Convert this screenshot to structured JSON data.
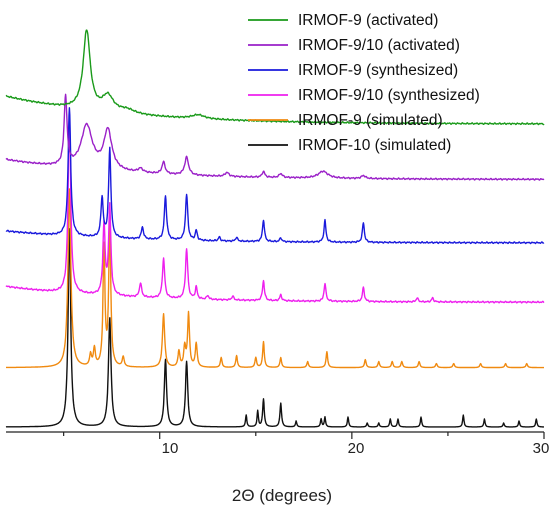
{
  "chart_data": {
    "type": "line",
    "title": "",
    "xlabel": "2Θ (degrees)",
    "ylabel": "",
    "xlim": [
      2,
      30
    ],
    "x_ticks": [
      10,
      20,
      30
    ],
    "x_tick_labels": [
      "10",
      "20",
      "30"
    ],
    "grid": false,
    "legend_position": "top-right",
    "legend": [
      {
        "label": "IRMOF-9 (activated)",
        "color": "#1a9a1a"
      },
      {
        "label": "IRMOF-9/10 (activated)",
        "color": "#9a20c8"
      },
      {
        "label": "IRMOF-9 (synthesized)",
        "color": "#1a1adc"
      },
      {
        "label": "IRMOF-9/10 (synthesized)",
        "color": "#ee20ee"
      },
      {
        "label": "IRMOF-9 (simulated)",
        "color": "#f08a10"
      },
      {
        "label": "IRMOF-10 (simulated)",
        "color": "#111111"
      }
    ],
    "series": [
      {
        "name": "IRMOF-10 (simulated)",
        "color": "#111111",
        "offset": 0,
        "baseline": 0,
        "decay": 0,
        "peaks": [
          [
            5.3,
            1.0,
            0.08
          ],
          [
            7.4,
            0.55,
            0.08
          ],
          [
            10.3,
            0.34,
            0.07
          ],
          [
            11.4,
            0.33,
            0.07
          ],
          [
            14.5,
            0.06,
            0.04
          ],
          [
            15.1,
            0.08,
            0.04
          ],
          [
            15.4,
            0.14,
            0.05
          ],
          [
            16.3,
            0.12,
            0.05
          ],
          [
            17.1,
            0.03,
            0.04
          ],
          [
            18.4,
            0.04,
            0.04
          ],
          [
            18.6,
            0.05,
            0.04
          ],
          [
            19.8,
            0.05,
            0.04
          ],
          [
            20.8,
            0.02,
            0.04
          ],
          [
            21.4,
            0.02,
            0.04
          ],
          [
            22.0,
            0.04,
            0.04
          ],
          [
            22.4,
            0.04,
            0.04
          ],
          [
            23.6,
            0.05,
            0.04
          ],
          [
            25.8,
            0.06,
            0.04
          ],
          [
            26.9,
            0.04,
            0.04
          ],
          [
            27.9,
            0.02,
            0.04
          ],
          [
            28.7,
            0.03,
            0.04
          ],
          [
            29.6,
            0.04,
            0.04
          ]
        ]
      },
      {
        "name": "IRMOF-9 (simulated)",
        "color": "#f08a10",
        "offset": 0.3,
        "baseline": 0,
        "decay": 0,
        "peaks": [
          [
            5.3,
            0.9,
            0.09
          ],
          [
            6.4,
            0.06,
            0.06
          ],
          [
            6.6,
            0.09,
            0.06
          ],
          [
            7.1,
            0.6,
            0.06
          ],
          [
            7.4,
            0.75,
            0.06
          ],
          [
            8.1,
            0.05,
            0.06
          ],
          [
            10.2,
            0.27,
            0.07
          ],
          [
            11.0,
            0.08,
            0.06
          ],
          [
            11.3,
            0.1,
            0.06
          ],
          [
            11.5,
            0.27,
            0.06
          ],
          [
            11.9,
            0.12,
            0.06
          ],
          [
            13.2,
            0.05,
            0.05
          ],
          [
            14.0,
            0.06,
            0.05
          ],
          [
            15.0,
            0.05,
            0.05
          ],
          [
            15.4,
            0.13,
            0.05
          ],
          [
            16.3,
            0.05,
            0.05
          ],
          [
            17.7,
            0.03,
            0.05
          ],
          [
            18.7,
            0.08,
            0.05
          ],
          [
            20.7,
            0.04,
            0.05
          ],
          [
            21.4,
            0.03,
            0.05
          ],
          [
            22.1,
            0.03,
            0.05
          ],
          [
            22.6,
            0.03,
            0.05
          ],
          [
            23.5,
            0.03,
            0.05
          ],
          [
            24.4,
            0.02,
            0.05
          ],
          [
            25.3,
            0.02,
            0.05
          ],
          [
            26.7,
            0.02,
            0.05
          ],
          [
            28.0,
            0.02,
            0.05
          ],
          [
            29.1,
            0.02,
            0.05
          ]
        ]
      },
      {
        "name": "IRMOF-9/10 (synthesized)",
        "color": "#ee20ee",
        "offset": 0.6,
        "baseline": 0.03,
        "decay": 0.08,
        "peaks": [
          [
            5.3,
            0.9,
            0.08
          ],
          [
            7.1,
            0.35,
            0.07
          ],
          [
            7.4,
            0.45,
            0.07
          ],
          [
            9.0,
            0.07,
            0.07
          ],
          [
            10.2,
            0.2,
            0.07
          ],
          [
            11.4,
            0.25,
            0.07
          ],
          [
            11.9,
            0.06,
            0.06
          ],
          [
            12.5,
            0.02,
            0.06
          ],
          [
            13.8,
            0.02,
            0.06
          ],
          [
            15.4,
            0.1,
            0.06
          ],
          [
            16.3,
            0.03,
            0.06
          ],
          [
            18.6,
            0.09,
            0.06
          ],
          [
            20.6,
            0.07,
            0.06
          ],
          [
            23.4,
            0.02,
            0.06
          ],
          [
            24.2,
            0.02,
            0.06
          ]
        ]
      },
      {
        "name": "IRMOF-9 (synthesized)",
        "color": "#1a1adc",
        "offset": 0.9,
        "baseline": 0.03,
        "decay": 0.06,
        "peaks": [
          [
            5.3,
            0.65,
            0.08
          ],
          [
            7.0,
            0.2,
            0.07
          ],
          [
            7.4,
            0.45,
            0.07
          ],
          [
            9.1,
            0.06,
            0.07
          ],
          [
            10.3,
            0.22,
            0.07
          ],
          [
            11.4,
            0.23,
            0.07
          ],
          [
            11.9,
            0.05,
            0.06
          ],
          [
            13.1,
            0.02,
            0.06
          ],
          [
            14.0,
            0.02,
            0.06
          ],
          [
            15.4,
            0.11,
            0.06
          ],
          [
            16.3,
            0.02,
            0.06
          ],
          [
            18.6,
            0.11,
            0.06
          ],
          [
            20.6,
            0.1,
            0.06
          ]
        ]
      },
      {
        "name": "IRMOF-9/10 (activated)",
        "color": "#9a20c8",
        "offset": 1.2,
        "baseline": 0.05,
        "decay": 0.1,
        "peaks": [
          [
            5.1,
            0.35,
            0.09
          ],
          [
            6.2,
            0.22,
            0.35
          ],
          [
            7.3,
            0.2,
            0.25
          ],
          [
            9.0,
            0.02,
            0.15
          ],
          [
            10.2,
            0.06,
            0.1
          ],
          [
            11.4,
            0.09,
            0.12
          ],
          [
            13.5,
            0.02,
            0.12
          ],
          [
            15.4,
            0.03,
            0.08
          ],
          [
            16.3,
            0.02,
            0.1
          ],
          [
            18.5,
            0.035,
            0.3
          ],
          [
            20.6,
            0.015,
            0.12
          ]
        ]
      },
      {
        "name": "IRMOF-9 (activated)",
        "color": "#1a9a1a",
        "offset": 1.5,
        "baseline": 0.03,
        "decay": 0.14,
        "peaks": [
          [
            6.2,
            0.4,
            0.22
          ],
          [
            7.3,
            0.08,
            0.35
          ],
          [
            8.3,
            0.02,
            0.5
          ],
          [
            12.0,
            0.02,
            0.4
          ]
        ]
      }
    ]
  }
}
